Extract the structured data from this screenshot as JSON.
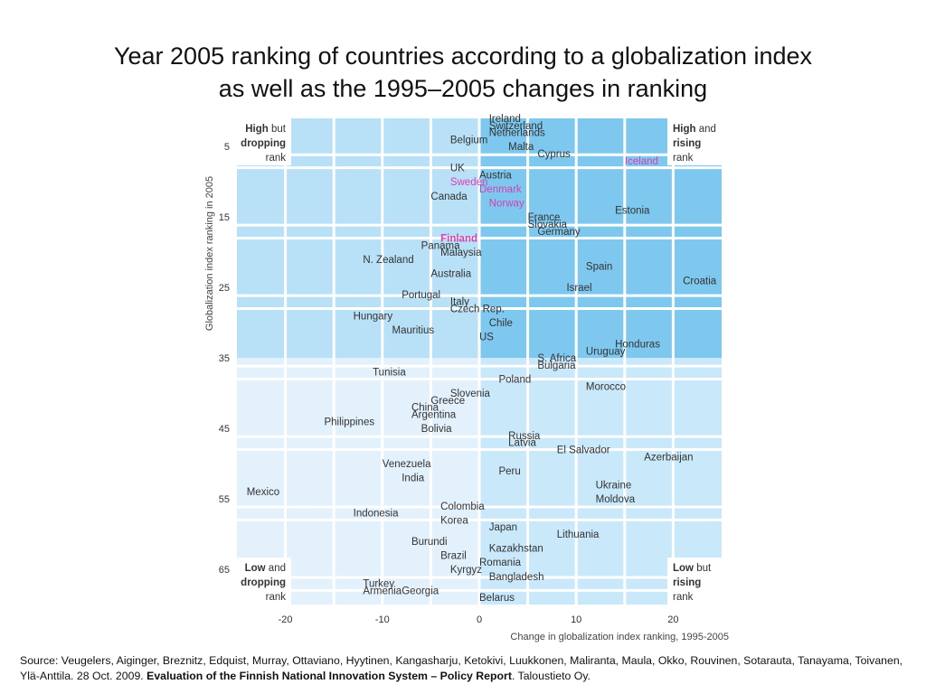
{
  "title": {
    "line1": "Year 2005 ranking of countries according to a globalization index",
    "line2": "as well as the 1995–2005 changes in ranking"
  },
  "chart_data": {
    "type": "scatter",
    "xlabel": "Change in globalization index ranking, 1995-2005",
    "ylabel": "Globalization index ranking in 2005",
    "xlim": [
      -25,
      25
    ],
    "ylim": [
      1,
      70
    ],
    "y_reversed": true,
    "xticks": [
      "-20",
      "-10",
      "0",
      "10",
      "20"
    ],
    "yticks": [
      "5",
      "15",
      "25",
      "35",
      "45",
      "55",
      "65"
    ],
    "corner_labels": {
      "top_left": [
        "High",
        " but",
        "dropping",
        "rank"
      ],
      "top_right": [
        "High",
        " and",
        "rising",
        "rank"
      ],
      "bottom_left": [
        "Low",
        " and",
        "dropping",
        "rank"
      ],
      "bottom_right": [
        "Low",
        " but",
        "rising",
        "rank"
      ]
    },
    "colors": {
      "background_light": "#e2f1fc",
      "background_dark": "#7ec8ef",
      "highlight": "#d63fb0"
    },
    "points": [
      {
        "name": "Ireland",
        "x": 1,
        "y": 1
      },
      {
        "name": "Switzerland",
        "x": 1,
        "y": 2
      },
      {
        "name": "Netherlands",
        "x": 1,
        "y": 3
      },
      {
        "name": "Belgium",
        "x": -3,
        "y": 4
      },
      {
        "name": "Malta",
        "x": 3,
        "y": 5
      },
      {
        "name": "Cyprus",
        "x": 6,
        "y": 6
      },
      {
        "name": "Iceland",
        "x": 15,
        "y": 7,
        "highlight": true
      },
      {
        "name": "UK",
        "x": -3,
        "y": 8
      },
      {
        "name": "Austria",
        "x": 0,
        "y": 9
      },
      {
        "name": "Sweden",
        "x": -3,
        "y": 10,
        "highlight": true
      },
      {
        "name": "Denmark",
        "x": 0,
        "y": 11,
        "highlight": true
      },
      {
        "name": "Canada",
        "x": -5,
        "y": 12
      },
      {
        "name": "Norway",
        "x": 1,
        "y": 13,
        "highlight": true
      },
      {
        "name": "Estonia",
        "x": 14,
        "y": 14
      },
      {
        "name": "France",
        "x": 5,
        "y": 15
      },
      {
        "name": "Slovakia",
        "x": 5,
        "y": 16
      },
      {
        "name": "Germany",
        "x": 6,
        "y": 17
      },
      {
        "name": "Finland",
        "x": -4,
        "y": 18,
        "highlight": true,
        "bold": true
      },
      {
        "name": "Panama",
        "x": -6,
        "y": 19
      },
      {
        "name": "Malaysia",
        "x": -4,
        "y": 20
      },
      {
        "name": "N. Zealand",
        "x": -12,
        "y": 21
      },
      {
        "name": "Spain",
        "x": 11,
        "y": 22
      },
      {
        "name": "Australia",
        "x": -5,
        "y": 23
      },
      {
        "name": "Croatia",
        "x": 21,
        "y": 24
      },
      {
        "name": "Israel",
        "x": 9,
        "y": 25
      },
      {
        "name": "Portugal",
        "x": -8,
        "y": 26
      },
      {
        "name": "Italy",
        "x": -3,
        "y": 27
      },
      {
        "name": "Czech Rep.",
        "x": -3,
        "y": 28
      },
      {
        "name": "Hungary",
        "x": -13,
        "y": 29
      },
      {
        "name": "Chile",
        "x": 1,
        "y": 30
      },
      {
        "name": "Mauritius",
        "x": -9,
        "y": 31
      },
      {
        "name": "US",
        "x": 0,
        "y": 32
      },
      {
        "name": "Honduras",
        "x": 14,
        "y": 33
      },
      {
        "name": "Uruguay",
        "x": 11,
        "y": 34
      },
      {
        "name": "S. Africa",
        "x": 6,
        "y": 35
      },
      {
        "name": "Bulgaria",
        "x": 6,
        "y": 36
      },
      {
        "name": "Tunisia",
        "x": -11,
        "y": 37
      },
      {
        "name": "Poland",
        "x": 2,
        "y": 38
      },
      {
        "name": "Morocco",
        "x": 11,
        "y": 39
      },
      {
        "name": "Slovenia",
        "x": -3,
        "y": 40
      },
      {
        "name": "Greece",
        "x": -5,
        "y": 41
      },
      {
        "name": "China",
        "x": -7,
        "y": 42
      },
      {
        "name": "Argentina",
        "x": -7,
        "y": 43
      },
      {
        "name": "Philippines",
        "x": -16,
        "y": 44
      },
      {
        "name": "Bolivia",
        "x": -6,
        "y": 45
      },
      {
        "name": "Russia",
        "x": 3,
        "y": 46
      },
      {
        "name": "Latvia",
        "x": 3,
        "y": 47
      },
      {
        "name": "El Salvador",
        "x": 8,
        "y": 48
      },
      {
        "name": "Azerbaijan",
        "x": 17,
        "y": 49
      },
      {
        "name": "Venezuela",
        "x": -10,
        "y": 50
      },
      {
        "name": "Peru",
        "x": 2,
        "y": 51
      },
      {
        "name": "India",
        "x": -8,
        "y": 52
      },
      {
        "name": "Ukraine",
        "x": 12,
        "y": 53
      },
      {
        "name": "Mexico",
        "x": -24,
        "y": 54
      },
      {
        "name": "Moldova",
        "x": 12,
        "y": 55
      },
      {
        "name": "Colombia",
        "x": -4,
        "y": 56
      },
      {
        "name": "Indonesia",
        "x": -13,
        "y": 57
      },
      {
        "name": "Korea",
        "x": -4,
        "y": 58
      },
      {
        "name": "Japan",
        "x": 1,
        "y": 59
      },
      {
        "name": "Lithuania",
        "x": 8,
        "y": 60
      },
      {
        "name": "Burundi",
        "x": -7,
        "y": 61
      },
      {
        "name": "Kazakhstan",
        "x": 1,
        "y": 62
      },
      {
        "name": "Brazil",
        "x": -4,
        "y": 63
      },
      {
        "name": "Romania",
        "x": 0,
        "y": 64
      },
      {
        "name": "Kyrgyz",
        "x": -3,
        "y": 65
      },
      {
        "name": "Bangladesh",
        "x": 1,
        "y": 66
      },
      {
        "name": "Turkey",
        "x": -12,
        "y": 67
      },
      {
        "name": "Armenia",
        "x": -12,
        "y": 68
      },
      {
        "name": "Georgia",
        "x": -8,
        "y": 68
      },
      {
        "name": "Belarus",
        "x": 0,
        "y": 69
      }
    ]
  },
  "source": {
    "text": "Source: Veugelers, Aiginger, Breznitz, Edquist, Murray, Ottaviano, Hyytinen, Kangasharju, Ketokivi, Luukkonen, Maliranta, Maula, Okko, Rouvinen, Sotarauta, Tanayama, Toivanen, Ylä-Anttila. 28 Oct. 2009. ",
    "report": "Evaluation of the Finnish National Innovation System – Policy Report",
    "publisher": ". Taloustieto Oy."
  }
}
